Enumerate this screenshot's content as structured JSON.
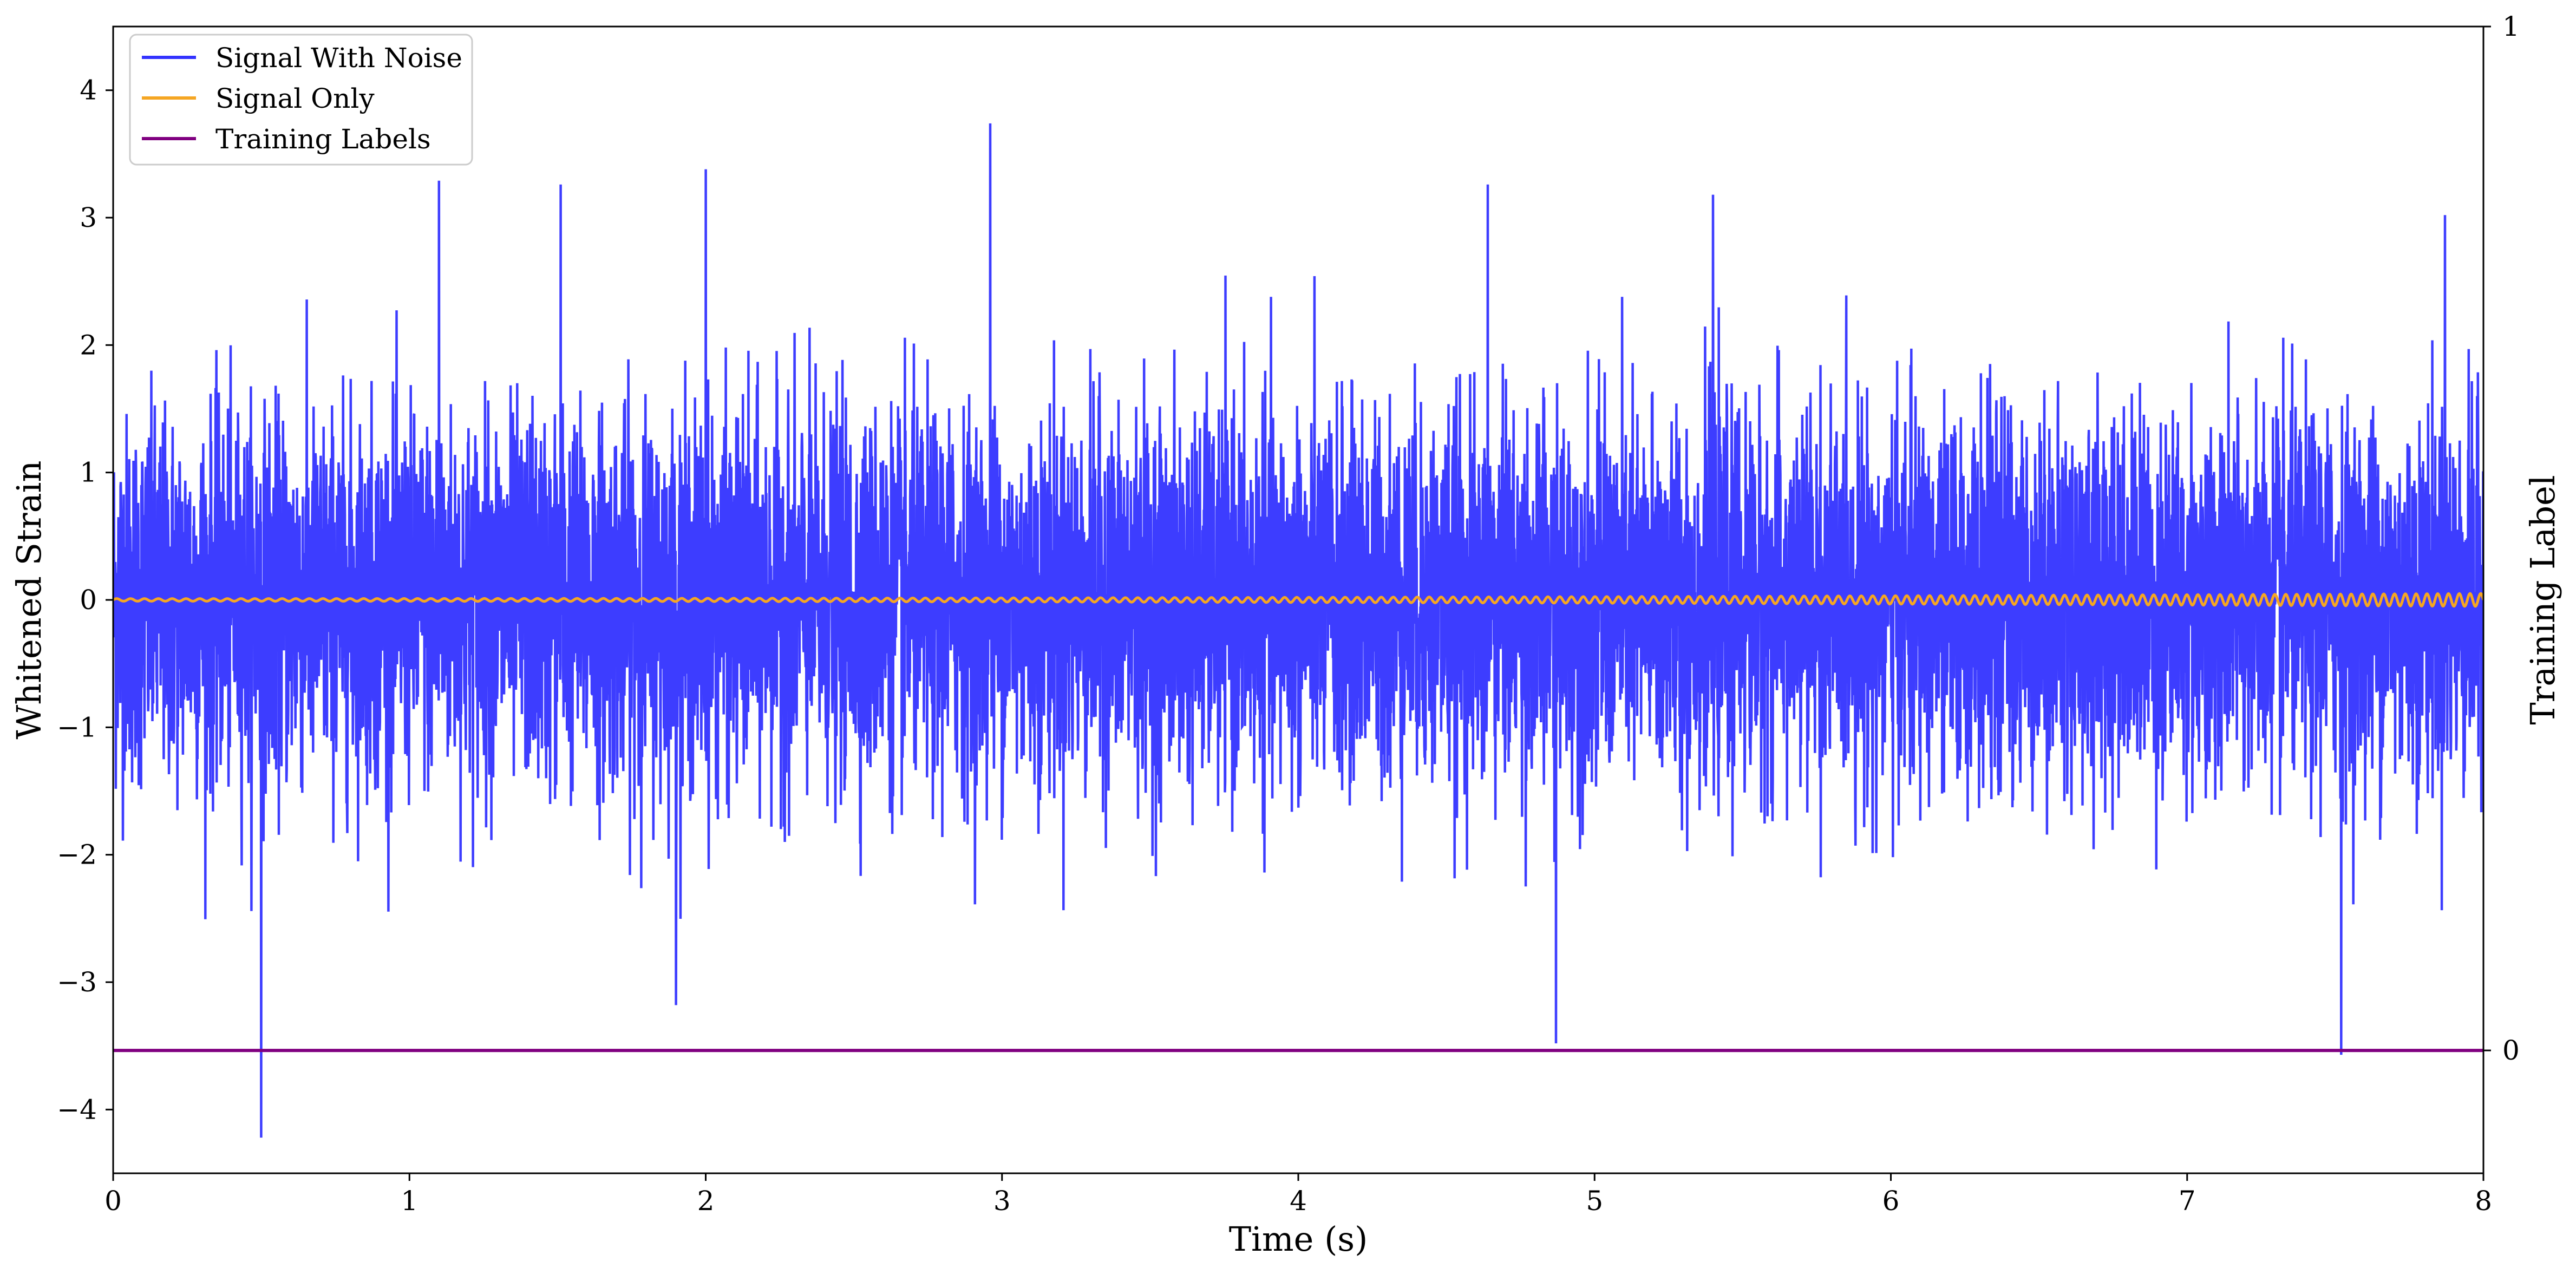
{
  "chart_data": {
    "type": "line",
    "xlabel": "Time (s)",
    "ylabel": "Whitened Strain",
    "y2label": "Training Label",
    "xlim": [
      0,
      8
    ],
    "ylim": [
      -4.5,
      4.5
    ],
    "y2lim": [
      -0.12,
      1.0
    ],
    "xticks": [
      "0",
      "1",
      "2",
      "3",
      "4",
      "5",
      "6",
      "7",
      "8"
    ],
    "yticks": [
      "−4",
      "−3",
      "−2",
      "−1",
      "0",
      "1",
      "2",
      "3",
      "4"
    ],
    "y2ticks": [
      "0",
      "1"
    ],
    "legend_position": "top-left",
    "grid": false,
    "series": [
      {
        "name": "Signal With Noise",
        "color": "#3333ff",
        "description_values": {
          "typical_range": [
            -2.0,
            2.0
          ],
          "peaks": [
            {
              "x": 0.5,
              "y": -4.22
            },
            {
              "x": 1.1,
              "y": 3.29
            },
            {
              "x": 1.51,
              "y": 3.26
            },
            {
              "x": 1.9,
              "y": -3.18
            },
            {
              "x": 2.0,
              "y": 3.38
            },
            {
              "x": 2.96,
              "y": 3.74
            },
            {
              "x": 4.64,
              "y": 3.26
            },
            {
              "x": 4.87,
              "y": -3.48
            },
            {
              "x": 5.4,
              "y": 3.18
            },
            {
              "x": 7.52,
              "y": -3.57
            },
            {
              "x": 7.87,
              "y": 3.02
            }
          ]
        }
      },
      {
        "name": "Signal Only",
        "color": "#f5a623",
        "amplitude_start": 0.01,
        "amplitude_end": 0.05,
        "cycles": 170
      },
      {
        "name": "Training Labels",
        "color": "#800080",
        "x": [
          0,
          8
        ],
        "y": [
          0,
          0
        ],
        "axis": "right"
      }
    ]
  }
}
